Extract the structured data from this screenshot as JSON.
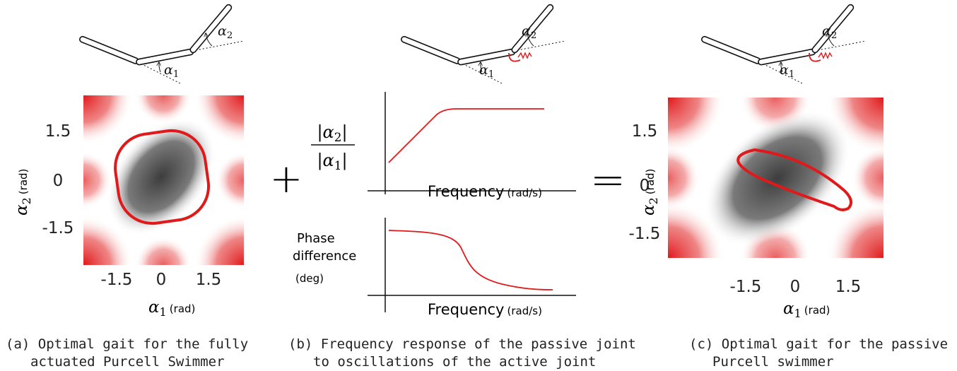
{
  "panels": [
    {
      "swimmer": {
        "angle1": {
          "symbol": "α",
          "subscript": "1"
        },
        "angle2": {
          "symbol": "α",
          "subscript": "2"
        }
      },
      "plot": {
        "yticks": [
          "1.5",
          "0",
          "-1.5"
        ],
        "xticks": [
          "-1.5",
          "0",
          "1.5"
        ],
        "xlabel": {
          "symbol": "α",
          "subscript": "1",
          "unit": "(rad)"
        },
        "ylabel": {
          "symbol": "α",
          "subscript": "2",
          "unit": "(rad)"
        }
      },
      "caption": [
        "(a) Optimal gait for the fully",
        "actuated Purcell Swimmer"
      ]
    },
    {
      "swimmer": {
        "angle1": {
          "symbol": "α",
          "subscript": "1"
        },
        "angle2": {
          "symbol": "α",
          "subscript": "2"
        }
      },
      "magnitude": {
        "ylabel": {
          "numerator": {
            "open": "|",
            "symbol": "α",
            "subscript": "2",
            "close": "|"
          },
          "denominator": {
            "open": "|",
            "symbol": "α",
            "subscript": "1",
            "close": "|"
          }
        },
        "xlabel": {
          "text": "Frequency",
          "unit": "(rad/s)"
        }
      },
      "phase": {
        "ylabel": [
          "Phase",
          "difference",
          "(deg)"
        ],
        "xlabel": {
          "text": "Frequency",
          "unit": "(rad/s)"
        }
      },
      "caption": [
        "(b) Frequency response of the passive joint",
        "to oscillations of the active joint"
      ]
    },
    {
      "swimmer": {
        "angle1": {
          "symbol": "α",
          "subscript": "1"
        },
        "angle2": {
          "symbol": "α",
          "subscript": "2"
        }
      },
      "plot": {
        "yticks": [
          "1.5",
          "0",
          "-1.5"
        ],
        "xticks": [
          "-1.5",
          "0",
          "1.5"
        ],
        "xlabel": {
          "symbol": "α",
          "subscript": "1",
          "unit": "(rad)"
        },
        "ylabel": {
          "symbol": "α",
          "subscript": "2",
          "unit": "(rad)"
        }
      },
      "caption": [
        "(c) Optimal gait for the passive",
        "Purcell swimmer"
      ]
    }
  ],
  "operators": [
    "+",
    "="
  ]
}
